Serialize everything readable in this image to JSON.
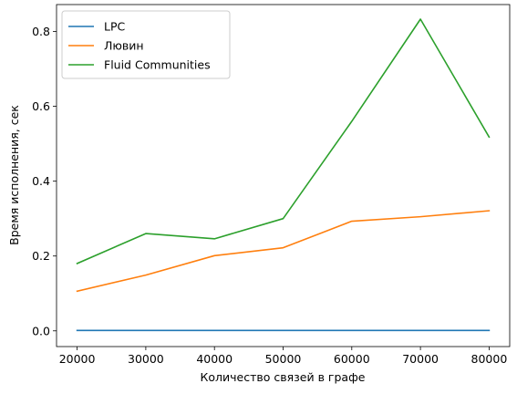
{
  "chart_data": {
    "type": "line",
    "title": "",
    "xlabel": "Количество связей в графе",
    "ylabel": "Время исполнения, сек",
    "xlim": [
      17000,
      83000
    ],
    "ylim": [
      -0.042,
      0.872
    ],
    "x": [
      20000,
      30000,
      40000,
      50000,
      60000,
      70000,
      80000
    ],
    "xticks": [
      20000,
      30000,
      40000,
      50000,
      60000,
      70000,
      80000
    ],
    "xtick_labels": [
      "20000",
      "30000",
      "40000",
      "50000",
      "60000",
      "70000",
      "80000"
    ],
    "yticks": [
      0.0,
      0.2,
      0.4,
      0.6,
      0.8
    ],
    "ytick_labels": [
      "0.0",
      "0.2",
      "0.4",
      "0.6",
      "0.8"
    ],
    "grid": false,
    "legend_position": "upper-left",
    "series": [
      {
        "name": "LPC",
        "color": "#1f77b4",
        "values": [
          0.001,
          0.001,
          0.001,
          0.001,
          0.001,
          0.001,
          0.001
        ]
      },
      {
        "name": "Лювин",
        "color": "#ff7f0e",
        "values": [
          0.106,
          0.149,
          0.201,
          0.222,
          0.293,
          0.305,
          0.321
        ]
      },
      {
        "name": "Fluid Communities",
        "color": "#2ca02c",
        "values": [
          0.18,
          0.26,
          0.246,
          0.3,
          0.56,
          0.833,
          0.518
        ]
      }
    ]
  }
}
